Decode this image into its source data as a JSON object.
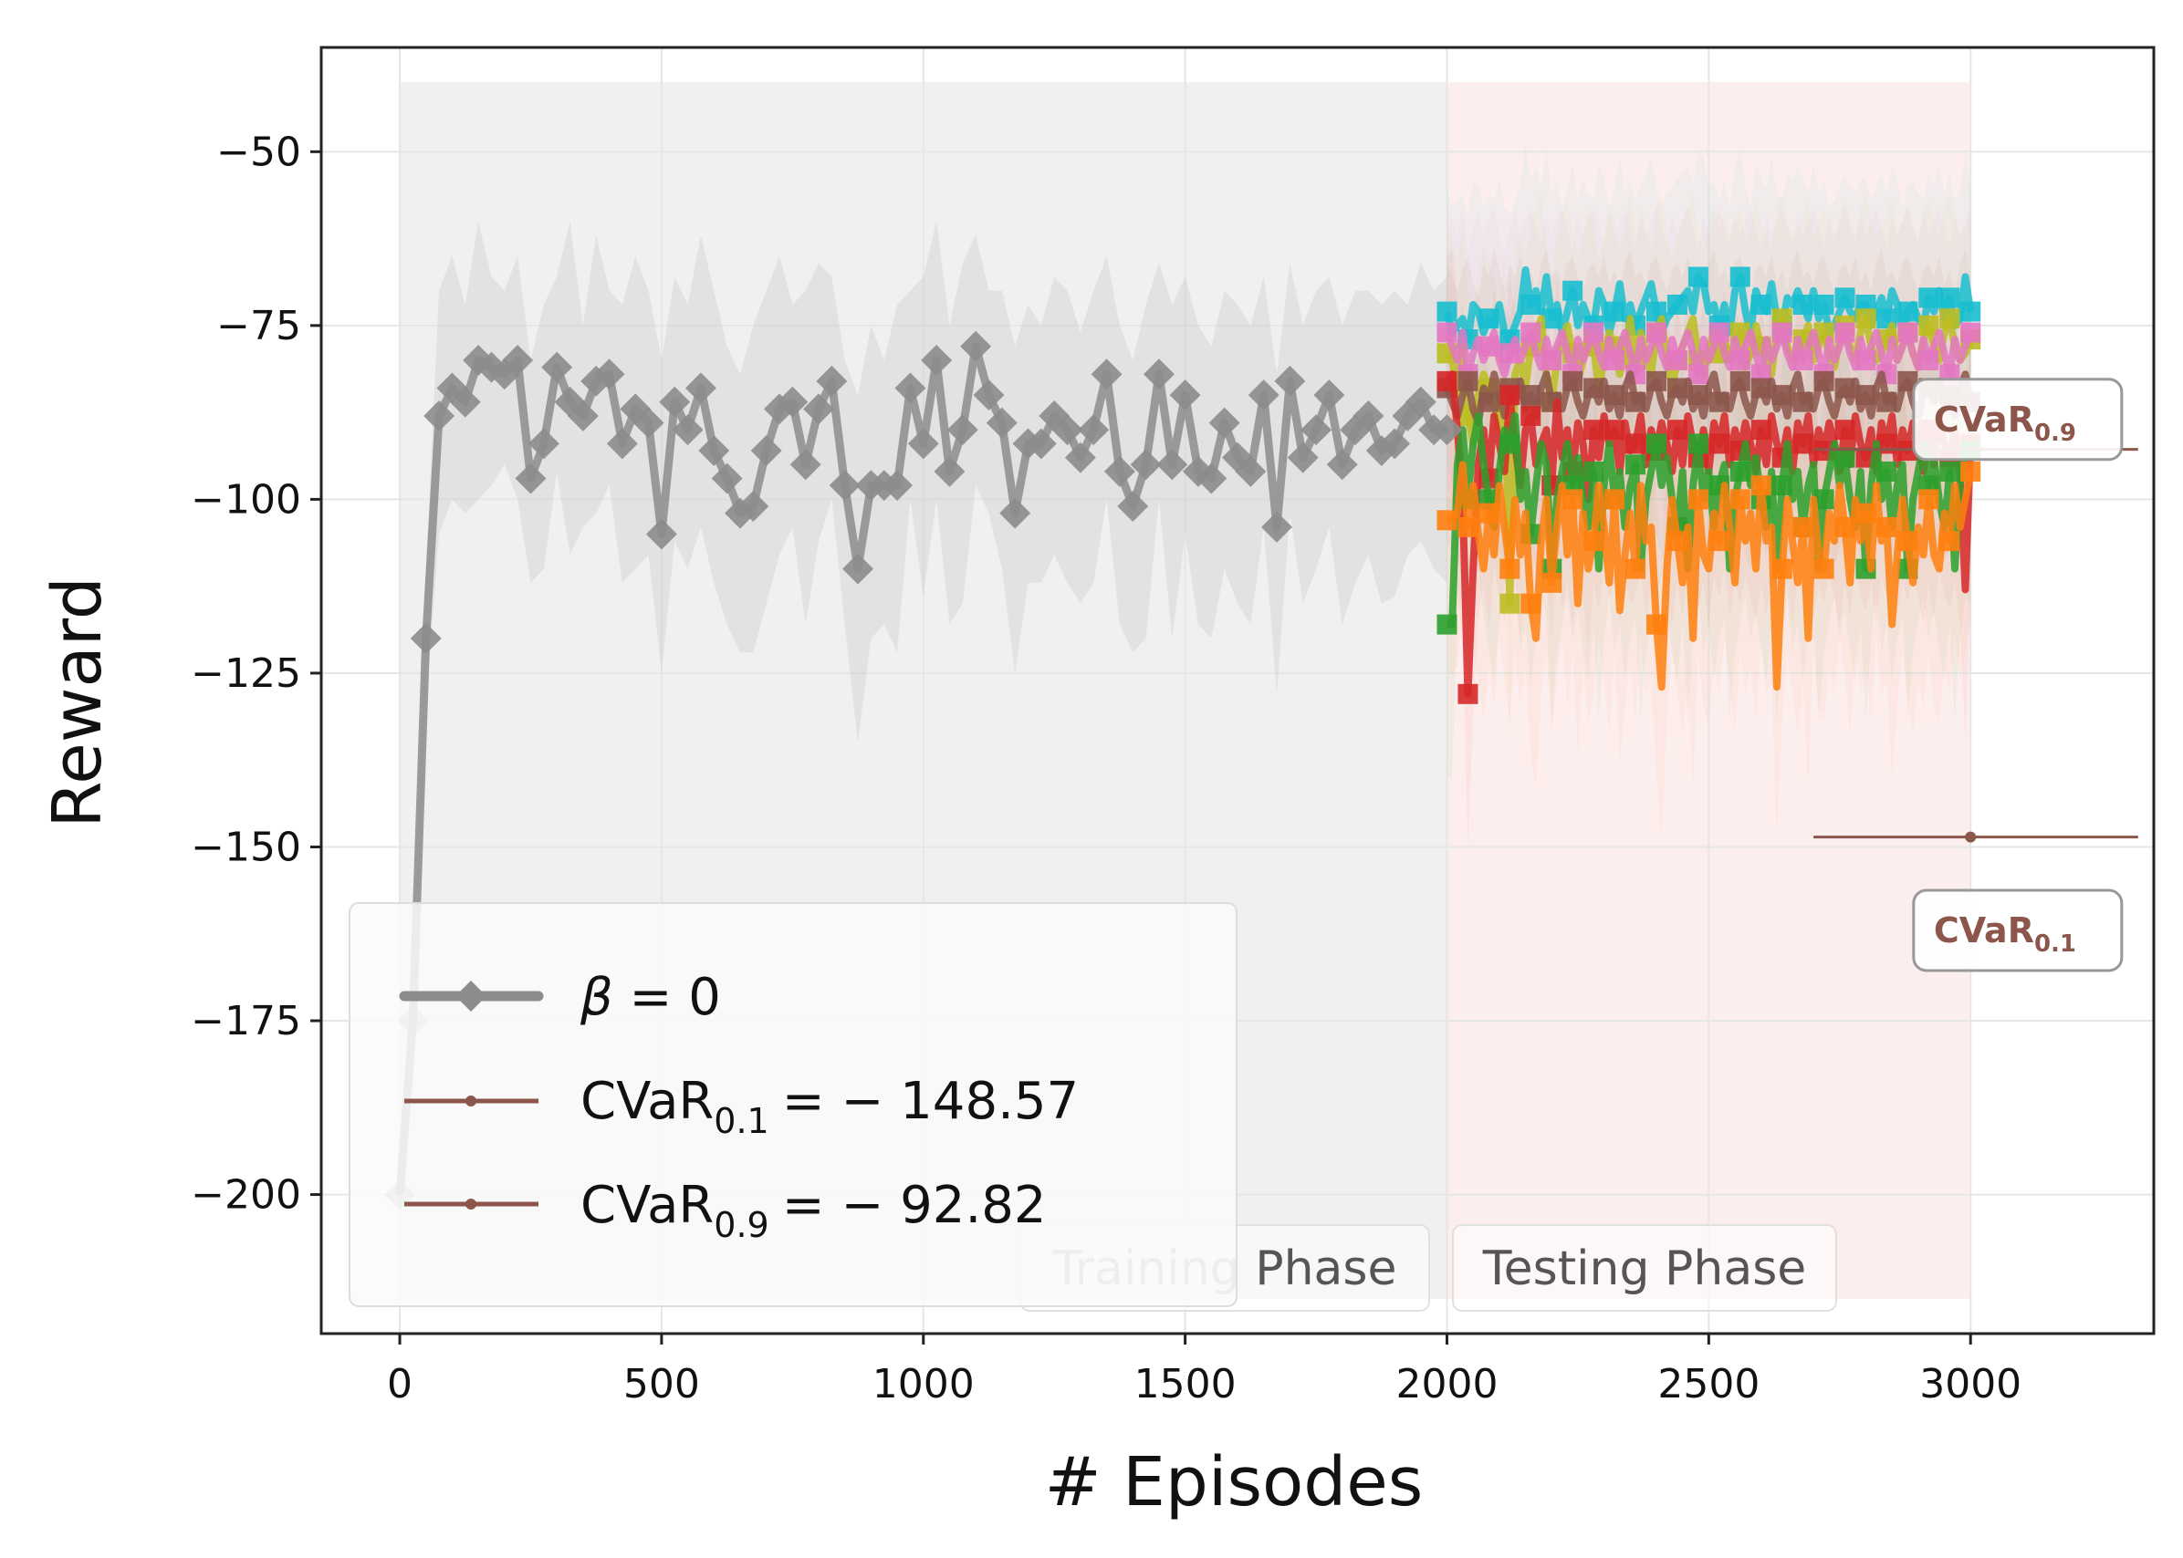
{
  "chart_data": {
    "type": "line",
    "title": "",
    "xlabel": "# Episodes",
    "ylabel": "Reward",
    "xlim": [
      -150,
      3350
    ],
    "ylim": [
      -220,
      -35
    ],
    "xticks": [
      0,
      500,
      1000,
      1500,
      2000,
      2500,
      3000
    ],
    "xtick_labels": [
      "0",
      "500",
      "1000",
      "1500",
      "2000",
      "2500",
      "3000"
    ],
    "yticks": [
      -200,
      -175,
      -150,
      -125,
      -100,
      -75,
      -50
    ],
    "ytick_labels": [
      "−200",
      "−175",
      "−150",
      "−125",
      "−100",
      "−75",
      "−50"
    ],
    "grid": true,
    "phases": [
      {
        "name": "Training Phase",
        "label_parts": [
          "Training",
          " Phase"
        ],
        "x_range": [
          0,
          2000
        ],
        "color": "#f0f0f0"
      },
      {
        "name": "Testing Phase",
        "label_parts": [
          "Testing",
          " Phase"
        ],
        "x_range": [
          2000,
          3000
        ],
        "color": "#fdeeee"
      }
    ],
    "training_series": {
      "name": "β = 0",
      "legend_symbol": "β",
      "legend_rest": " = 0",
      "color": "#8c8c8c",
      "marker": "diamond",
      "x": [
        0,
        25,
        50,
        75,
        100,
        125,
        150,
        175,
        200,
        225,
        250,
        275,
        300,
        325,
        350,
        375,
        400,
        425,
        450,
        475,
        500,
        525,
        550,
        575,
        600,
        625,
        650,
        675,
        700,
        725,
        750,
        775,
        800,
        825,
        850,
        875,
        900,
        925,
        950,
        975,
        1000,
        1025,
        1050,
        1075,
        1100,
        1125,
        1150,
        1175,
        1200,
        1225,
        1250,
        1275,
        1300,
        1325,
        1350,
        1375,
        1400,
        1425,
        1450,
        1475,
        1500,
        1525,
        1550,
        1575,
        1600,
        1625,
        1650,
        1675,
        1700,
        1725,
        1750,
        1775,
        1800,
        1825,
        1850,
        1875,
        1900,
        1925,
        1950,
        1975,
        2000
      ],
      "y": [
        -200,
        -175,
        -120,
        -88,
        -84,
        -86,
        -80,
        -81,
        -82,
        -80,
        -97,
        -92,
        -81,
        -86,
        -88,
        -83,
        -82,
        -92,
        -87,
        -89,
        -105,
        -86,
        -90,
        -84,
        -93,
        -97,
        -102,
        -101,
        -93,
        -87,
        -86,
        -95,
        -87,
        -83,
        -98,
        -110,
        -98,
        -98,
        -98,
        -84,
        -92,
        -80,
        -96,
        -90,
        -78,
        -85,
        -89,
        -102,
        -92,
        -92,
        -88,
        -90,
        -94,
        -90,
        -82,
        -96,
        -101,
        -95,
        -82,
        -95,
        -85,
        -96,
        -97,
        -89,
        -94,
        -96,
        -85,
        -104,
        -83,
        -94,
        -90,
        -85,
        -95,
        -90,
        -88,
        -93,
        -92,
        -88,
        -86,
        -90,
        -90
      ],
      "band_upper": [
        -198,
        -170,
        -110,
        -70,
        -65,
        -72,
        -60,
        -68,
        -70,
        -65,
        -80,
        -72,
        -68,
        -60,
        -75,
        -62,
        -70,
        -72,
        -65,
        -70,
        -80,
        -68,
        -72,
        -62,
        -70,
        -78,
        -82,
        -75,
        -70,
        -65,
        -72,
        -70,
        -66,
        -68,
        -80,
        -85,
        -75,
        -80,
        -72,
        -70,
        -68,
        -60,
        -75,
        -66,
        -62,
        -70,
        -70,
        -78,
        -72,
        -75,
        -68,
        -70,
        -76,
        -70,
        -65,
        -75,
        -80,
        -72,
        -66,
        -72,
        -68,
        -75,
        -78,
        -70,
        -72,
        -75,
        -68,
        -82,
        -66,
        -75,
        -70,
        -68,
        -75,
        -70,
        -70,
        -72,
        -70,
        -72,
        -66,
        -70,
        -68
      ],
      "band_lower": [
        -202,
        -180,
        -130,
        -105,
        -100,
        -102,
        -100,
        -98,
        -95,
        -100,
        -112,
        -110,
        -96,
        -108,
        -104,
        -102,
        -98,
        -112,
        -110,
        -108,
        -125,
        -106,
        -110,
        -104,
        -112,
        -118,
        -122,
        -122,
        -115,
        -108,
        -104,
        -118,
        -106,
        -100,
        -118,
        -135,
        -120,
        -118,
        -122,
        -100,
        -114,
        -100,
        -118,
        -115,
        -98,
        -102,
        -110,
        -125,
        -112,
        -112,
        -108,
        -112,
        -115,
        -112,
        -100,
        -118,
        -122,
        -120,
        -100,
        -120,
        -105,
        -118,
        -120,
        -110,
        -115,
        -118,
        -104,
        -128,
        -102,
        -115,
        -110,
        -104,
        -118,
        -112,
        -108,
        -115,
        -114,
        -108,
        -106,
        -110,
        -112
      ]
    },
    "testing_series": [
      {
        "name": "cyan",
        "color": "#17becf",
        "values": [
          -73,
          -76,
          -75,
          -74,
          -77,
          -72,
          -73,
          -76,
          -74,
          -75,
          -72,
          -76,
          -77,
          -75,
          -73,
          -67,
          -72,
          -70,
          -73,
          -68,
          -74,
          -72,
          -76,
          -73,
          -70,
          -75,
          -72,
          -74,
          -75,
          -70,
          -72,
          -76,
          -73,
          -69,
          -74,
          -72,
          -75,
          -73,
          -71,
          -69,
          -73,
          -76,
          -74,
          -73,
          -72,
          -71,
          -70,
          -73,
          -68,
          -69,
          -73,
          -72,
          -75,
          -72,
          -76,
          -70,
          -68,
          -73,
          -76,
          -70,
          -72,
          -73,
          -69,
          -74,
          -75,
          -71,
          -72,
          -70,
          -72,
          -74,
          -70,
          -74,
          -72,
          -76,
          -75,
          -73,
          -71,
          -73,
          -74,
          -72,
          -72,
          -75,
          -73,
          -71,
          -74,
          -70,
          -72,
          -76,
          -73,
          -72,
          -74,
          -75,
          -71,
          -73,
          -70,
          -74,
          -71,
          -75,
          -74,
          -68,
          -73
        ]
      },
      {
        "name": "olive",
        "color": "#bcbd22",
        "values": [
          -79,
          -80,
          -85,
          -78,
          -88,
          -92,
          -85,
          -82,
          -84,
          -86,
          -90,
          -83,
          -115,
          -82,
          -80,
          -84,
          -78,
          -76,
          -74,
          -82,
          -86,
          -80,
          -77,
          -75,
          -79,
          -83,
          -80,
          -76,
          -78,
          -84,
          -80,
          -76,
          -78,
          -82,
          -79,
          -74,
          -80,
          -76,
          -79,
          -82,
          -76,
          -74,
          -80,
          -84,
          -80,
          -78,
          -76,
          -74,
          -80,
          -82,
          -78,
          -76,
          -79,
          -77,
          -80,
          -78,
          -76,
          -81,
          -79,
          -75,
          -78,
          -80,
          -82,
          -76,
          -74,
          -78,
          -80,
          -79,
          -77,
          -75,
          -80,
          -78,
          -76,
          -79,
          -81,
          -77,
          -75,
          -78,
          -80,
          -76,
          -74,
          -78,
          -80,
          -79,
          -77,
          -75,
          -80,
          -78,
          -76,
          -79,
          -81,
          -77,
          -75,
          -78,
          -80,
          -76,
          -74,
          -78,
          -80,
          -79,
          -77
        ]
      },
      {
        "name": "pink",
        "color": "#e377c2",
        "values": [
          -76,
          -78,
          -80,
          -76,
          -82,
          -79,
          -77,
          -80,
          -78,
          -76,
          -80,
          -82,
          -79,
          -77,
          -80,
          -78,
          -76,
          -79,
          -81,
          -77,
          -80,
          -78,
          -76,
          -79,
          -82,
          -77,
          -80,
          -78,
          -76,
          -79,
          -81,
          -77,
          -80,
          -78,
          -76,
          -79,
          -82,
          -77,
          -80,
          -78,
          -76,
          -79,
          -81,
          -77,
          -80,
          -78,
          -76,
          -79,
          -82,
          -77,
          -80,
          -78,
          -76,
          -79,
          -81,
          -77,
          -80,
          -78,
          -76,
          -79,
          -82,
          -77,
          -80,
          -78,
          -76,
          -79,
          -81,
          -77,
          -80,
          -78,
          -76,
          -79,
          -82,
          -77,
          -80,
          -78,
          -76,
          -79,
          -81,
          -77,
          -80,
          -78,
          -76,
          -79,
          -82,
          -77,
          -80,
          -78,
          -76,
          -79,
          -81,
          -77,
          -80,
          -78,
          -76,
          -79,
          -82,
          -77,
          -80,
          -78,
          -76
        ]
      },
      {
        "name": "brown",
        "color": "#8c564b",
        "values": [
          -84,
          -86,
          -88,
          -85,
          -83,
          -87,
          -89,
          -84,
          -86,
          -82,
          -85,
          -88,
          -84,
          -86,
          -83,
          -87,
          -85,
          -88,
          -84,
          -82,
          -86,
          -85,
          -87,
          -84,
          -83,
          -86,
          -88,
          -85,
          -84,
          -86,
          -83,
          -87,
          -85,
          -88,
          -84,
          -82,
          -86,
          -85,
          -87,
          -84,
          -83,
          -86,
          -88,
          -85,
          -84,
          -86,
          -83,
          -87,
          -85,
          -88,
          -84,
          -82,
          -86,
          -85,
          -87,
          -84,
          -83,
          -86,
          -88,
          -85,
          -84,
          -86,
          -83,
          -87,
          -85,
          -88,
          -84,
          -82,
          -86,
          -85,
          -87,
          -84,
          -83,
          -86,
          -88,
          -85,
          -84,
          -86,
          -83,
          -87,
          -85,
          -88,
          -84,
          -82,
          -86,
          -85,
          -87,
          -84,
          -83,
          -86,
          -88,
          -85,
          -84,
          -86,
          -83,
          -87,
          -85,
          -88,
          -84,
          -82,
          -86
        ]
      },
      {
        "name": "red",
        "color": "#d62728",
        "values": [
          -83,
          -82,
          -90,
          -100,
          -128,
          -110,
          -95,
          -90,
          -97,
          -88,
          -92,
          -96,
          -85,
          -92,
          -98,
          -90,
          -88,
          -95,
          -92,
          -90,
          -98,
          -86,
          -94,
          -90,
          -96,
          -89,
          -92,
          -100,
          -90,
          -94,
          -88,
          -92,
          -90,
          -96,
          -89,
          -93,
          -92,
          -88,
          -95,
          -90,
          -93,
          -89,
          -92,
          -96,
          -90,
          -95,
          -88,
          -92,
          -94,
          -90,
          -96,
          -89,
          -92,
          -88,
          -95,
          -90,
          -93,
          -89,
          -92,
          -96,
          -90,
          -95,
          -88,
          -92,
          -94,
          -90,
          -96,
          -89,
          -92,
          -88,
          -95,
          -90,
          -93,
          -89,
          -92,
          -96,
          -90,
          -95,
          -88,
          -92,
          -94,
          -90,
          -96,
          -89,
          -92,
          -88,
          -95,
          -90,
          -93,
          -89,
          -92,
          -96,
          -90,
          -95,
          -88,
          -92,
          -94,
          -90,
          -96,
          -113,
          -92
        ]
      },
      {
        "name": "green",
        "color": "#2ca02c",
        "values": [
          -118,
          -118,
          -95,
          -90,
          -100,
          -92,
          -88,
          -95,
          -100,
          -104,
          -96,
          -90,
          -92,
          -88,
          -100,
          -96,
          -105,
          -98,
          -92,
          -95,
          -110,
          -100,
          -96,
          -92,
          -98,
          -94,
          -100,
          -104,
          -96,
          -110,
          -98,
          -92,
          -100,
          -96,
          -104,
          -98,
          -95,
          -110,
          -100,
          -96,
          -92,
          -98,
          -94,
          -100,
          -104,
          -96,
          -110,
          -98,
          -92,
          -100,
          -96,
          -104,
          -98,
          -95,
          -110,
          -100,
          -96,
          -92,
          -98,
          -94,
          -100,
          -104,
          -96,
          -110,
          -98,
          -92,
          -100,
          -96,
          -104,
          -98,
          -95,
          -110,
          -100,
          -96,
          -92,
          -98,
          -94,
          -100,
          -104,
          -96,
          -110,
          -98,
          -92,
          -100,
          -96,
          -104,
          -98,
          -95,
          -110,
          -100,
          -96,
          -92,
          -98,
          -94,
          -100,
          -104,
          -96,
          -110,
          -98,
          -92,
          -93
        ]
      },
      {
        "name": "orange",
        "color": "#ff7f0e",
        "values": [
          -103,
          -103,
          -102,
          -95,
          -104,
          -98,
          -105,
          -110,
          -102,
          -108,
          -98,
          -104,
          -110,
          -100,
          -108,
          -102,
          -115,
          -120,
          -106,
          -100,
          -112,
          -104,
          -98,
          -108,
          -100,
          -115,
          -102,
          -110,
          -106,
          -98,
          -104,
          -112,
          -100,
          -116,
          -108,
          -102,
          -110,
          -98,
          -106,
          -104,
          -118,
          -127,
          -110,
          -100,
          -106,
          -112,
          -104,
          -120,
          -100,
          -108,
          -110,
          -102,
          -106,
          -98,
          -104,
          -112,
          -100,
          -106,
          -102,
          -110,
          -98,
          -106,
          -104,
          -127,
          -110,
          -100,
          -106,
          -112,
          -104,
          -120,
          -100,
          -108,
          -110,
          -102,
          -106,
          -98,
          -104,
          -112,
          -100,
          -106,
          -102,
          -110,
          -98,
          -106,
          -104,
          -118,
          -108,
          -100,
          -106,
          -112,
          -104,
          -108,
          -100,
          -108,
          -110,
          -102,
          -106,
          -98,
          -104,
          -100,
          -96
        ]
      }
    ],
    "cvar_lines": [
      {
        "name": "CVaR0.1",
        "base": "CVaR",
        "sub": "0.1",
        "value": -148.57,
        "value_text": "= − 148.57",
        "color": "#8c564b",
        "x_range": [
          2700,
          3320
        ],
        "marker_x": 3000,
        "box_label_base": "CVaR",
        "box_label_sub": "0.1"
      },
      {
        "name": "CVaR0.9",
        "base": "CVaR",
        "sub": "0.9",
        "value": -92.82,
        "value_text": "= − 92.82",
        "color": "#8c564b",
        "x_range": [
          2700,
          3320
        ],
        "marker_x": null,
        "box_label_base": "CVaR",
        "box_label_sub": "0.9"
      }
    ],
    "legend_position": "lower-left"
  }
}
